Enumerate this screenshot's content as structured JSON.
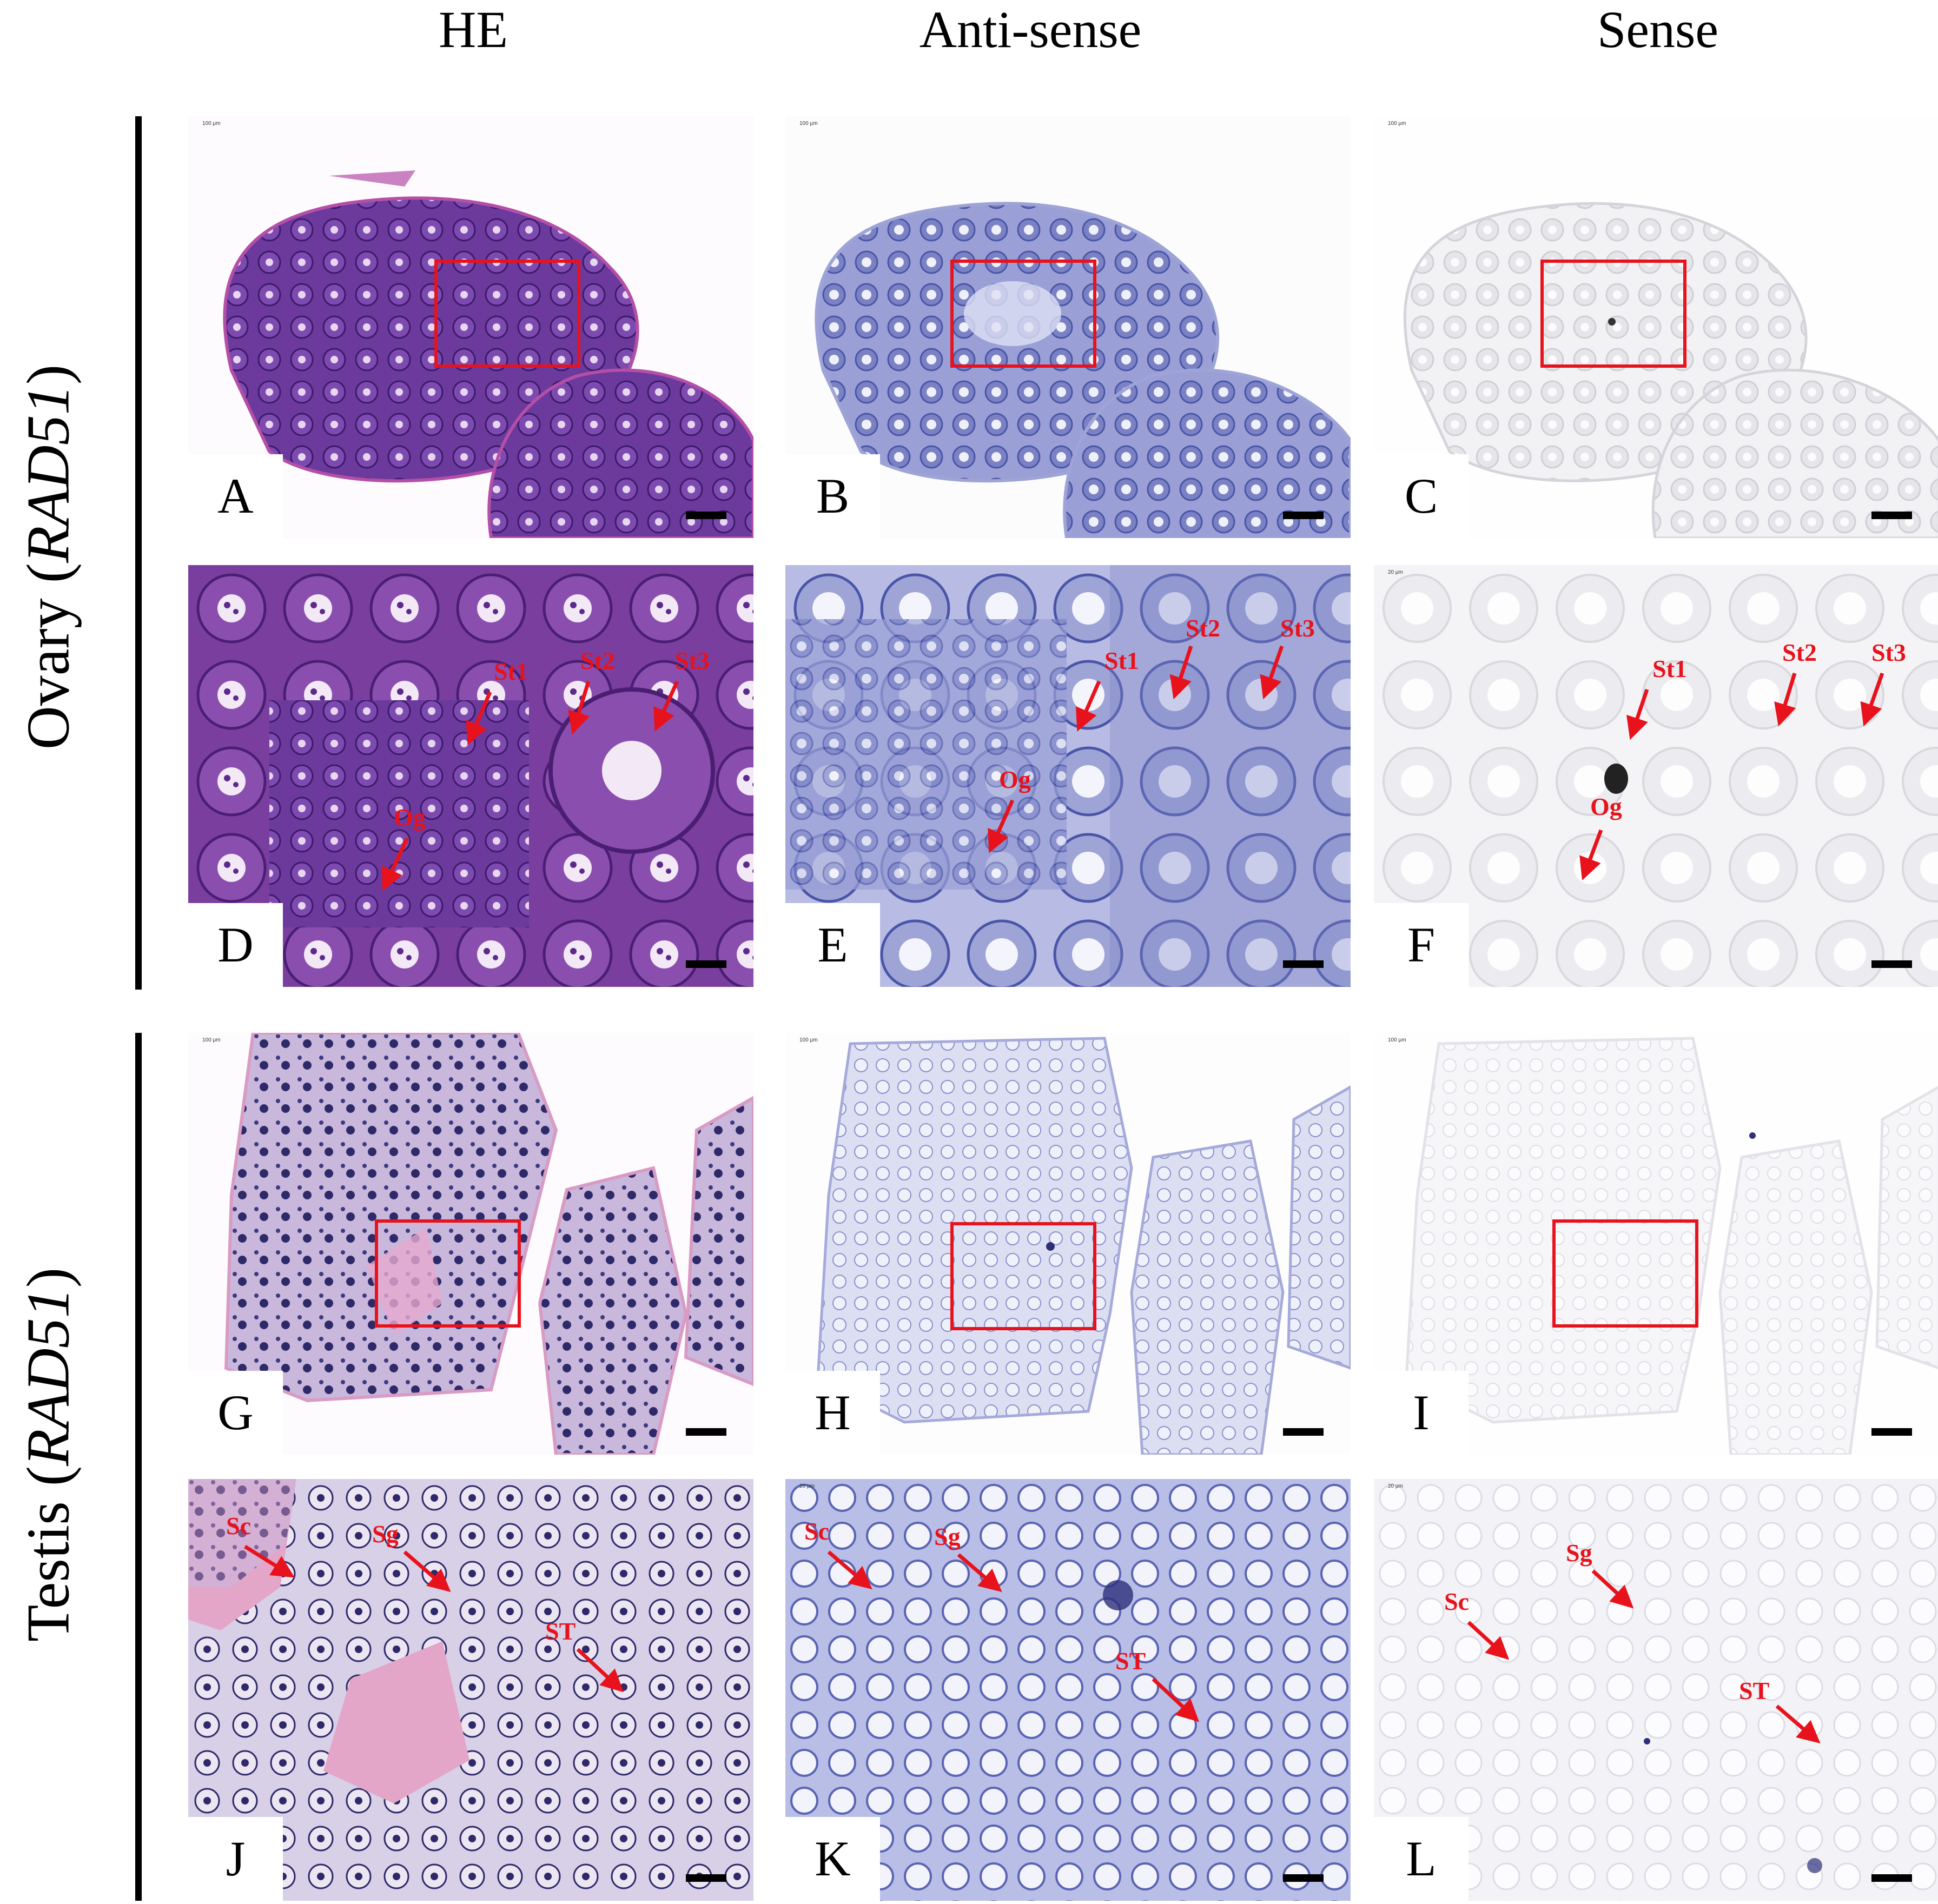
{
  "column_headers": [
    "HE",
    "Anti-sense",
    "Sense"
  ],
  "row_labels": [
    {
      "tissue": "Ovary (",
      "gene": "RAD51",
      "close": ")"
    },
    {
      "tissue": "Testis (",
      "gene": "RAD51",
      "close": ")"
    }
  ],
  "colors": {
    "annotation": "#e8121c",
    "he_stain": "#5b2a8c",
    "antisense_stain": "#4a55a8",
    "sense_stain": "#9a9aa0"
  },
  "scale_text": {
    "overview": "100 μm",
    "detail": "20 μm"
  },
  "panels": {
    "A": {
      "letter": "A",
      "stain": "HE",
      "tissue": "ovary",
      "view": "overview"
    },
    "B": {
      "letter": "B",
      "stain": "Anti-sense",
      "tissue": "ovary",
      "view": "overview"
    },
    "C": {
      "letter": "C",
      "stain": "Sense",
      "tissue": "ovary",
      "view": "overview"
    },
    "D": {
      "letter": "D",
      "stain": "HE",
      "tissue": "ovary",
      "view": "detail",
      "labels": {
        "st1": "St1",
        "st2": "St2",
        "st3": "St3",
        "og": "Og"
      }
    },
    "E": {
      "letter": "E",
      "stain": "Anti-sense",
      "tissue": "ovary",
      "view": "detail",
      "labels": {
        "st1": "St1",
        "st2": "St2",
        "st3": "St3",
        "og": "Og"
      }
    },
    "F": {
      "letter": "F",
      "stain": "Sense",
      "tissue": "ovary",
      "view": "detail",
      "labels": {
        "st1": "St1",
        "st2": "St2",
        "st3": "St3",
        "og": "Og"
      }
    },
    "G": {
      "letter": "G",
      "stain": "HE",
      "tissue": "testis",
      "view": "overview"
    },
    "H": {
      "letter": "H",
      "stain": "Anti-sense",
      "tissue": "testis",
      "view": "overview"
    },
    "I": {
      "letter": "I",
      "stain": "Sense",
      "tissue": "testis",
      "view": "overview"
    },
    "J": {
      "letter": "J",
      "stain": "HE",
      "tissue": "testis",
      "view": "detail",
      "labels": {
        "sc": "Sc",
        "sg": "Sg",
        "st": "ST"
      }
    },
    "K": {
      "letter": "K",
      "stain": "Anti-sense",
      "tissue": "testis",
      "view": "detail",
      "labels": {
        "sc": "Sc",
        "sg": "Sg",
        "st": "ST"
      }
    },
    "L": {
      "letter": "L",
      "stain": "Sense",
      "tissue": "testis",
      "view": "detail",
      "labels": {
        "sc": "Sc",
        "sg": "Sg",
        "st": "ST"
      }
    }
  }
}
